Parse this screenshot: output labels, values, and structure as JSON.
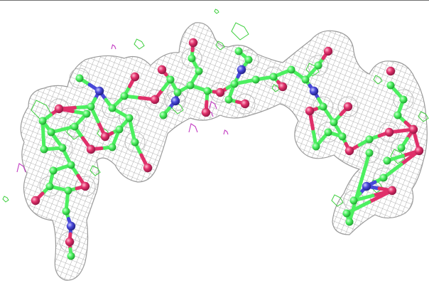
{
  "scene": {
    "subject": "electron-density-mesh-with-ball-and-stick-oligosaccharide",
    "colors": {
      "background": "#ffffff",
      "density_mesh": "#9a9a9a",
      "carbon": "#4cf060",
      "oxygen": "#e0306a",
      "nitrogen": "#4848d8",
      "difference_density_positive": "#3fcf3f",
      "difference_density_negative": "#c23cc2",
      "frame_rule": "#6e6e6e"
    },
    "icons": []
  }
}
